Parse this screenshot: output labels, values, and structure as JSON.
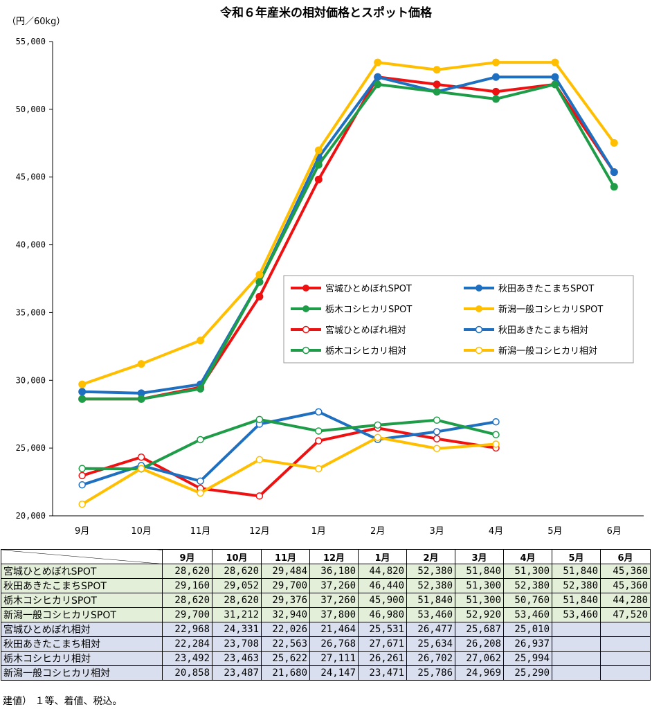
{
  "title": "令和６年産米の相対価格とスポット価格",
  "unit": "（円／60kg）",
  "footnote": "建値） １等、着値、税込。",
  "colors": {
    "red": "#ee1111",
    "blue": "#1f6fc0",
    "green": "#1e9c48",
    "yellow": "#ffbf00"
  },
  "chart_data": {
    "type": "line",
    "title": "令和６年産米の相対価格とスポット価格",
    "ylabel": "（円／60kg）",
    "ylim": [
      20000,
      55000
    ],
    "y_ticks": [
      "20,000",
      "25,000",
      "30,000",
      "35,000",
      "40,000",
      "45,000",
      "50,000",
      "55,000"
    ],
    "y_tick_values": [
      20000,
      25000,
      30000,
      35000,
      40000,
      45000,
      50000,
      55000
    ],
    "categories": [
      "9月",
      "10月",
      "11月",
      "12月",
      "1月",
      "2月",
      "3月",
      "4月",
      "5月",
      "6月"
    ],
    "legend_position": "center-right",
    "grid": false,
    "series": [
      {
        "name": "宮城ひとめぼれSPOT",
        "color": "#ee1111",
        "marker": "filled",
        "values": [
          28620,
          28620,
          29484,
          36180,
          44820,
          52380,
          51840,
          51300,
          51840,
          45360
        ]
      },
      {
        "name": "秋田あきたこまちSPOT",
        "color": "#1f6fc0",
        "marker": "filled",
        "values": [
          29160,
          29052,
          29700,
          37260,
          46440,
          52380,
          51300,
          52380,
          52380,
          45360
        ]
      },
      {
        "name": "栃木コシヒカリSPOT",
        "color": "#1e9c48",
        "marker": "filled",
        "values": [
          28620,
          28620,
          29376,
          37260,
          45900,
          51840,
          51300,
          50760,
          51840,
          44280
        ]
      },
      {
        "name": "新潟一般コシヒカリSPOT",
        "color": "#ffbf00",
        "marker": "filled",
        "values": [
          29700,
          31212,
          32940,
          37800,
          46980,
          53460,
          52920,
          53460,
          53460,
          47520
        ]
      },
      {
        "name": "宮城ひとめぼれ相対",
        "color": "#ee1111",
        "marker": "open",
        "values": [
          22968,
          24331,
          22026,
          21464,
          25531,
          26477,
          25687,
          25010,
          null,
          null
        ]
      },
      {
        "name": "秋田あきたこまち相対",
        "color": "#1f6fc0",
        "marker": "open",
        "values": [
          22284,
          23708,
          22563,
          26768,
          27671,
          25634,
          26208,
          26937,
          null,
          null
        ]
      },
      {
        "name": "栃木コシヒカリ相対",
        "color": "#1e9c48",
        "marker": "open",
        "values": [
          23492,
          23463,
          25622,
          27111,
          26261,
          26702,
          27062,
          25994,
          null,
          null
        ]
      },
      {
        "name": "新潟一般コシヒカリ相対",
        "color": "#ffbf00",
        "marker": "open",
        "values": [
          20858,
          23487,
          21680,
          24147,
          23471,
          25786,
          24969,
          25290,
          null,
          null
        ]
      }
    ]
  },
  "table": {
    "headers": [
      "9月",
      "10月",
      "11月",
      "12月",
      "1月",
      "2月",
      "3月",
      "4月",
      "5月",
      "6月"
    ],
    "rows": [
      {
        "name": "宮城ひとめぼれSPOT",
        "kind": "spot",
        "cells": [
          "28,620",
          "28,620",
          "29,484",
          "36,180",
          "44,820",
          "52,380",
          "51,840",
          "51,300",
          "51,840",
          "45,360"
        ]
      },
      {
        "name": "秋田あきたこまちSPOT",
        "kind": "spot",
        "cells": [
          "29,160",
          "29,052",
          "29,700",
          "37,260",
          "46,440",
          "52,380",
          "51,300",
          "52,380",
          "52,380",
          "45,360"
        ]
      },
      {
        "name": "栃木コシヒカリSPOT",
        "kind": "spot",
        "cells": [
          "28,620",
          "28,620",
          "29,376",
          "37,260",
          "45,900",
          "51,840",
          "51,300",
          "50,760",
          "51,840",
          "44,280"
        ]
      },
      {
        "name": "新潟一般コシヒカリSPOT",
        "kind": "spot",
        "cells": [
          "29,700",
          "31,212",
          "32,940",
          "37,800",
          "46,980",
          "53,460",
          "52,920",
          "53,460",
          "53,460",
          "47,520"
        ]
      },
      {
        "name": "宮城ひとめぼれ相対",
        "kind": "rel",
        "cells": [
          "22,968",
          "24,331",
          "22,026",
          "21,464",
          "25,531",
          "26,477",
          "25,687",
          "25,010",
          "",
          ""
        ]
      },
      {
        "name": "秋田あきたこまち相対",
        "kind": "rel",
        "cells": [
          "22,284",
          "23,708",
          "22,563",
          "26,768",
          "27,671",
          "25,634",
          "26,208",
          "26,937",
          "",
          ""
        ]
      },
      {
        "name": "栃木コシヒカリ相対",
        "kind": "rel",
        "cells": [
          "23,492",
          "23,463",
          "25,622",
          "27,111",
          "26,261",
          "26,702",
          "27,062",
          "25,994",
          "",
          ""
        ]
      },
      {
        "name": "新潟一般コシヒカリ相対",
        "kind": "rel",
        "cells": [
          "20,858",
          "23,487",
          "21,680",
          "24,147",
          "23,471",
          "25,786",
          "24,969",
          "25,290",
          "",
          ""
        ]
      }
    ]
  }
}
